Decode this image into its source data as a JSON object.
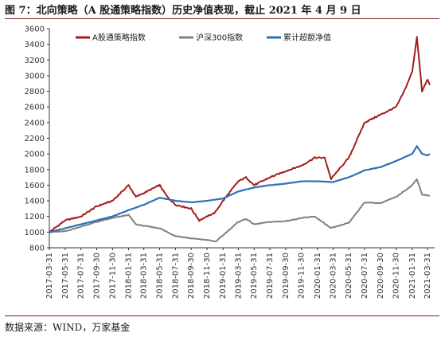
{
  "title": "图 7：北向策略（A 股通策略指数）历史净值表现，截止 2021 年 4 月 9 日",
  "source": "数据来源：WIND，万家基金",
  "colors": {
    "series1": "#a51c1c",
    "series2": "#808080",
    "series3": "#2f71b8",
    "rule": "#7f1d1d"
  },
  "chart_data": {
    "type": "line",
    "title": "",
    "xlabel": "",
    "ylabel": "",
    "ylim": [
      800,
      3600
    ],
    "yticks": [
      800,
      1000,
      1200,
      1400,
      1600,
      1800,
      2000,
      2200,
      2400,
      2600,
      2800,
      3000,
      3200,
      3400,
      3600
    ],
    "xticks": [
      "2017-03-31",
      "2017-05-31",
      "2017-07-31",
      "2017-09-30",
      "2017-11-30",
      "2018-01-31",
      "2018-03-31",
      "2018-05-31",
      "2018-07-31",
      "2018-09-30",
      "2018-11-30",
      "2019-01-31",
      "2019-03-31",
      "2019-05-31",
      "2019-07-31",
      "2019-09-30",
      "2019-11-30",
      "2020-01-31",
      "2020-03-31",
      "2020-05-31",
      "2020-07-31",
      "2020-09-30",
      "2020-11-30",
      "2021-01-31",
      "2021-03-31"
    ],
    "grid": false,
    "legend_position": "top-left",
    "series": [
      {
        "name": "A股通策略指数",
        "x": [
          "2017-03-31",
          "2017-05-31",
          "2017-07-31",
          "2017-09-30",
          "2017-11-30",
          "2018-01-31",
          "2018-02-28",
          "2018-03-31",
          "2018-05-31",
          "2018-06-30",
          "2018-07-31",
          "2018-09-30",
          "2018-10-31",
          "2018-12-31",
          "2019-01-31",
          "2019-03-31",
          "2019-04-30",
          "2019-05-31",
          "2019-07-31",
          "2019-09-30",
          "2019-11-30",
          "2020-01-20",
          "2020-02-28",
          "2020-03-23",
          "2020-05-31",
          "2020-07-31",
          "2020-09-30",
          "2020-11-30",
          "2020-12-31",
          "2021-01-31",
          "2021-02-18",
          "2021-03-10",
          "2021-03-31",
          "2021-04-09"
        ],
        "values": [
          1000,
          1150,
          1200,
          1330,
          1400,
          1600,
          1450,
          1500,
          1600,
          1450,
          1350,
          1300,
          1150,
          1250,
          1400,
          1650,
          1700,
          1600,
          1700,
          1780,
          1850,
          1950,
          1950,
          1680,
          1950,
          2400,
          2500,
          2600,
          2800,
          3050,
          3500,
          2800,
          2950,
          2880
        ]
      },
      {
        "name": "沪深300指数",
        "x": [
          "2017-03-31",
          "2017-05-31",
          "2017-07-31",
          "2017-09-30",
          "2017-11-30",
          "2018-01-31",
          "2018-02-28",
          "2018-03-31",
          "2018-05-31",
          "2018-07-31",
          "2018-09-30",
          "2018-11-30",
          "2019-01-03",
          "2019-03-31",
          "2019-04-30",
          "2019-05-31",
          "2019-07-31",
          "2019-09-30",
          "2019-11-30",
          "2020-01-20",
          "2020-03-23",
          "2020-05-31",
          "2020-07-31",
          "2020-09-30",
          "2020-11-30",
          "2021-01-31",
          "2021-02-18",
          "2021-03-10",
          "2021-03-31",
          "2021-04-09"
        ],
        "values": [
          1000,
          1010,
          1070,
          1130,
          1180,
          1220,
          1100,
          1080,
          1050,
          950,
          920,
          900,
          880,
          1130,
          1170,
          1100,
          1130,
          1140,
          1180,
          1200,
          1050,
          1120,
          1380,
          1370,
          1450,
          1600,
          1680,
          1480,
          1470,
          1460
        ]
      },
      {
        "name": "累计超额净值",
        "x": [
          "2017-03-31",
          "2017-07-31",
          "2017-11-30",
          "2018-01-31",
          "2018-03-31",
          "2018-05-31",
          "2018-07-31",
          "2018-09-30",
          "2018-11-30",
          "2019-01-31",
          "2019-03-31",
          "2019-05-31",
          "2019-07-31",
          "2019-09-30",
          "2019-11-30",
          "2020-01-31",
          "2020-03-31",
          "2020-05-31",
          "2020-07-31",
          "2020-09-30",
          "2020-11-30",
          "2021-01-31",
          "2021-02-18",
          "2021-03-10",
          "2021-03-31",
          "2021-04-09"
        ],
        "values": [
          1000,
          1100,
          1200,
          1280,
          1350,
          1440,
          1400,
          1380,
          1400,
          1430,
          1520,
          1570,
          1600,
          1620,
          1650,
          1650,
          1640,
          1700,
          1790,
          1830,
          1910,
          2000,
          2100,
          2000,
          1980,
          2000
        ]
      }
    ]
  }
}
